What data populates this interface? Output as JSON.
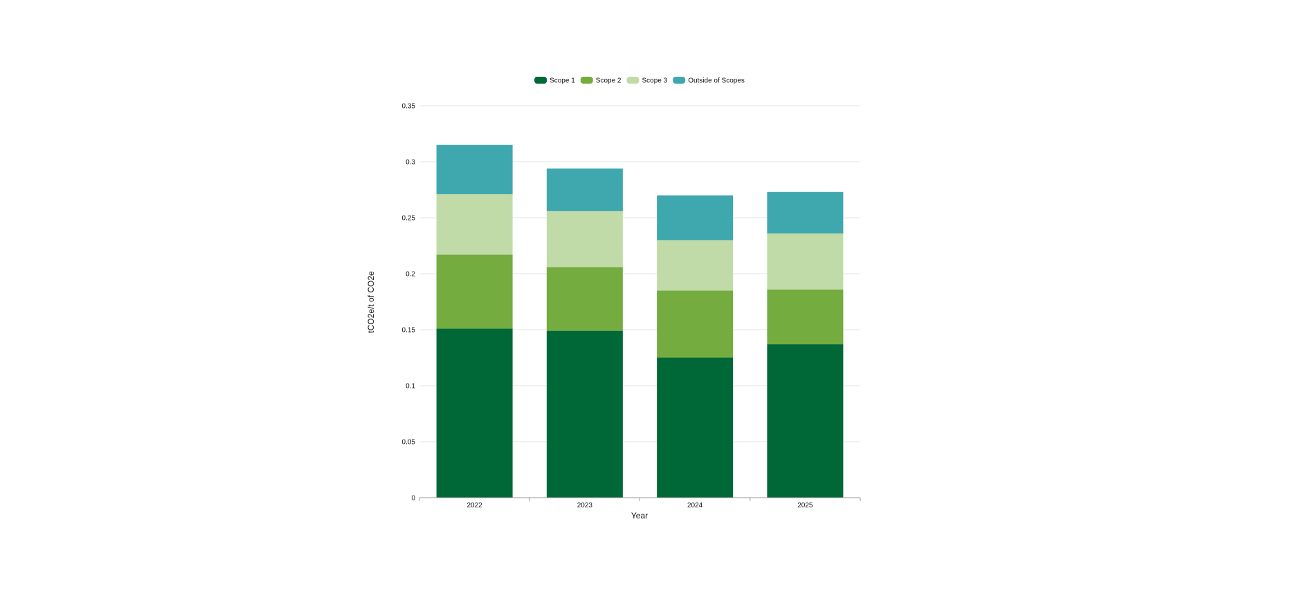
{
  "chart_data": {
    "type": "bar",
    "stacked": true,
    "categories": [
      "2022",
      "2023",
      "2024",
      "2025"
    ],
    "series": [
      {
        "name": "Scope 1",
        "color": "#006837",
        "values": [
          0.151,
          0.149,
          0.125,
          0.137
        ]
      },
      {
        "name": "Scope 2",
        "color": "#74ac3f",
        "values": [
          0.066,
          0.057,
          0.06,
          0.049
        ]
      },
      {
        "name": "Scope 3",
        "color": "#c0dba8",
        "values": [
          0.054,
          0.05,
          0.045,
          0.05
        ]
      },
      {
        "name": "Outside of Scopes",
        "color": "#3fa8ae",
        "values": [
          0.044,
          0.038,
          0.04,
          0.037
        ]
      }
    ],
    "xlabel": "Year",
    "ylabel": "tCO2e/t of CO2e",
    "ylim": [
      0,
      0.35
    ],
    "yticks": [
      "0",
      "0.05",
      "0.1",
      "0.15",
      "0.2",
      "0.25",
      "0.3",
      "0.35"
    ],
    "grid": true,
    "legend": "top-center"
  }
}
